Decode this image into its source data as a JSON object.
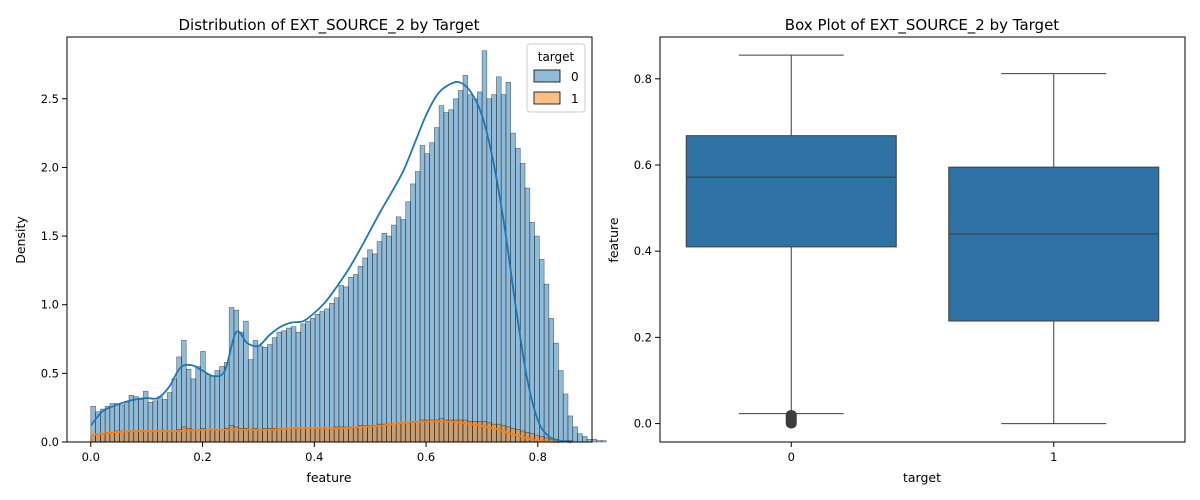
{
  "chart_data": [
    {
      "type": "histogram",
      "title": "Distribution of EXT_SOURCE_2 by Target",
      "xlabel": "feature",
      "ylabel": "Density",
      "xlim": [
        -0.0426,
        0.897
      ],
      "ylim": [
        0,
        2.95
      ],
      "xticks": [
        0.0,
        0.2,
        0.4,
        0.6,
        0.8
      ],
      "xtick_labels": [
        "0.0",
        "0.2",
        "0.4",
        "0.6",
        "0.8"
      ],
      "yticks": [
        0.0,
        0.5,
        1.0,
        1.5,
        2.0,
        2.5
      ],
      "ytick_labels": [
        "0.0",
        "0.5",
        "1.0",
        "1.5",
        "2.0",
        "2.5"
      ],
      "bin_width": 0.00854,
      "legend": {
        "title": "target",
        "position": "top-right"
      },
      "series": [
        {
          "name": "0",
          "color": "#1f77b4",
          "bar_values": [
            0.26,
            0.22,
            0.24,
            0.26,
            0.28,
            0.28,
            0.27,
            0.29,
            0.34,
            0.33,
            0.31,
            0.37,
            0.29,
            0.3,
            0.33,
            0.31,
            0.36,
            0.46,
            0.62,
            0.74,
            0.53,
            0.46,
            0.55,
            0.66,
            0.49,
            0.48,
            0.52,
            0.55,
            0.58,
            0.98,
            0.96,
            0.8,
            0.88,
            0.6,
            0.74,
            0.7,
            0.69,
            0.71,
            0.76,
            0.8,
            0.81,
            0.83,
            0.84,
            0.8,
            0.86,
            0.88,
            0.9,
            0.93,
            0.95,
            0.97,
            1.01,
            1.05,
            1.14,
            1.13,
            1.2,
            1.22,
            1.28,
            1.34,
            1.4,
            1.37,
            1.46,
            1.52,
            1.5,
            1.58,
            1.64,
            1.62,
            1.75,
            1.88,
            1.97,
            2.16,
            2.1,
            2.18,
            2.29,
            2.45,
            2.4,
            2.42,
            2.5,
            2.56,
            2.67,
            2.53,
            2.5,
            2.55,
            2.85,
            2.5,
            2.53,
            2.66,
            2.53,
            2.62,
            2.25,
            2.14,
            2.03,
            1.85,
            1.6,
            1.5,
            1.33,
            1.15,
            0.9,
            0.72,
            0.52,
            0.35,
            0.19,
            0.11,
            0.06,
            0.04,
            0.02,
            0.02,
            0.01,
            0.01,
            0.0,
            0.0
          ],
          "kde_x": [
            0.0,
            0.02,
            0.04,
            0.06,
            0.08,
            0.1,
            0.12,
            0.14,
            0.16,
            0.18,
            0.2,
            0.22,
            0.24,
            0.26,
            0.28,
            0.3,
            0.32,
            0.34,
            0.36,
            0.38,
            0.4,
            0.42,
            0.44,
            0.46,
            0.48,
            0.5,
            0.52,
            0.54,
            0.56,
            0.58,
            0.6,
            0.62,
            0.64,
            0.66,
            0.68,
            0.7,
            0.72,
            0.74,
            0.76,
            0.78,
            0.8,
            0.82,
            0.84,
            0.86
          ],
          "kde_y": [
            0.12,
            0.22,
            0.26,
            0.29,
            0.31,
            0.32,
            0.32,
            0.4,
            0.54,
            0.56,
            0.52,
            0.48,
            0.52,
            0.8,
            0.72,
            0.7,
            0.78,
            0.84,
            0.87,
            0.88,
            0.94,
            1.02,
            1.13,
            1.25,
            1.39,
            1.54,
            1.69,
            1.83,
            1.98,
            2.18,
            2.38,
            2.53,
            2.6,
            2.62,
            2.55,
            2.38,
            2.05,
            1.58,
            1.0,
            0.48,
            0.16,
            0.04,
            0.01,
            0.0
          ]
        },
        {
          "name": "1",
          "color": "#ff7f0e",
          "bar_values": [
            0.05,
            0.06,
            0.06,
            0.07,
            0.07,
            0.08,
            0.08,
            0.08,
            0.08,
            0.08,
            0.08,
            0.08,
            0.08,
            0.08,
            0.08,
            0.08,
            0.08,
            0.08,
            0.09,
            0.11,
            0.1,
            0.09,
            0.09,
            0.1,
            0.09,
            0.09,
            0.09,
            0.09,
            0.1,
            0.12,
            0.11,
            0.1,
            0.1,
            0.09,
            0.1,
            0.09,
            0.1,
            0.1,
            0.1,
            0.1,
            0.1,
            0.1,
            0.1,
            0.1,
            0.1,
            0.1,
            0.1,
            0.1,
            0.1,
            0.1,
            0.1,
            0.11,
            0.11,
            0.11,
            0.11,
            0.11,
            0.12,
            0.12,
            0.12,
            0.12,
            0.13,
            0.13,
            0.13,
            0.13,
            0.14,
            0.14,
            0.14,
            0.15,
            0.15,
            0.16,
            0.16,
            0.16,
            0.16,
            0.17,
            0.16,
            0.16,
            0.16,
            0.16,
            0.16,
            0.15,
            0.15,
            0.15,
            0.15,
            0.14,
            0.13,
            0.13,
            0.12,
            0.11,
            0.1,
            0.09,
            0.08,
            0.07,
            0.06,
            0.05,
            0.04,
            0.03,
            0.02,
            0.02,
            0.01,
            0.01,
            0.01,
            0.0,
            0.0,
            0.0,
            0.0,
            0.0,
            0.0,
            0.0,
            0.0,
            0.0
          ],
          "kde_x": [
            0.0,
            0.04,
            0.08,
            0.12,
            0.16,
            0.2,
            0.24,
            0.28,
            0.32,
            0.36,
            0.4,
            0.44,
            0.48,
            0.52,
            0.56,
            0.6,
            0.64,
            0.68,
            0.72,
            0.76,
            0.8,
            0.84
          ],
          "kde_y": [
            0.05,
            0.07,
            0.08,
            0.08,
            0.08,
            0.09,
            0.09,
            0.09,
            0.09,
            0.1,
            0.1,
            0.1,
            0.11,
            0.12,
            0.14,
            0.15,
            0.15,
            0.13,
            0.1,
            0.05,
            0.01,
            0.0
          ]
        }
      ]
    },
    {
      "type": "box",
      "title": "Box Plot of EXT_SOURCE_2 by Target",
      "xlabel": "target",
      "ylabel": "feature",
      "ylim": [
        -0.04275,
        0.897
      ],
      "yticks": [
        0.0,
        0.2,
        0.4,
        0.6,
        0.8
      ],
      "ytick_labels": [
        "0.0",
        "0.2",
        "0.4",
        "0.6",
        "0.8"
      ],
      "categories": [
        "0",
        "1"
      ],
      "color": "#2f72a5",
      "boxes": [
        {
          "category": "0",
          "whisker_low": 0.023,
          "q1": 0.41,
          "median": 0.572,
          "q3": 0.668,
          "whisker_high": 0.855,
          "outliers": [
            0.0,
            0.004,
            0.008,
            0.012,
            0.016,
            0.02
          ]
        },
        {
          "category": "1",
          "whisker_low": 0.0,
          "q1": 0.238,
          "median": 0.44,
          "q3": 0.595,
          "whisker_high": 0.812,
          "outliers": []
        }
      ]
    }
  ]
}
